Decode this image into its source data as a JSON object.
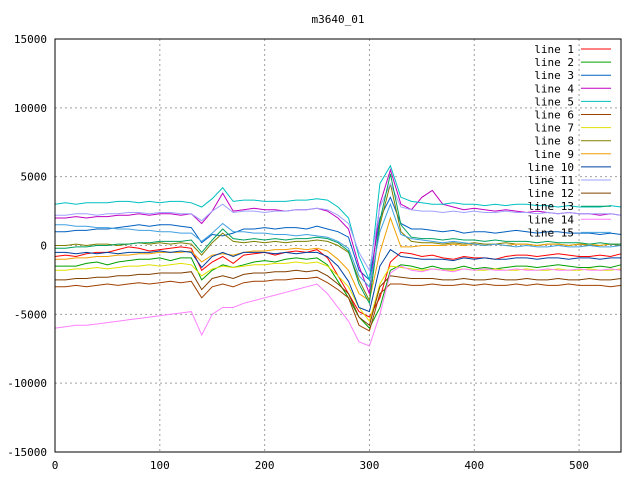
{
  "chart_data": {
    "type": "line",
    "title": "m3640_01",
    "xlabel": "",
    "ylabel": "",
    "xlim": [
      0,
      540
    ],
    "ylim": [
      -15000,
      15000
    ],
    "x_ticks": [
      0,
      100,
      200,
      300,
      400,
      500
    ],
    "y_ticks": [
      -15000,
      -10000,
      -5000,
      0,
      5000,
      10000,
      15000
    ],
    "grid": true,
    "legend_position": "top-right",
    "series": [
      {
        "name": "line 1",
        "color": "#ff0000",
        "values": [
          -800,
          -700,
          -800,
          -600,
          -500,
          -500,
          -300,
          -100,
          -200,
          -400,
          -300,
          -200,
          -100,
          -200,
          -1800,
          -1200,
          -800,
          -1300,
          -700,
          -600,
          -500,
          -700,
          -500,
          -400,
          -500,
          -300,
          -900,
          -2200,
          -3500,
          -4800,
          -5200,
          -3800,
          -1200,
          -500,
          -600,
          -800,
          -700,
          -900,
          -1000,
          -800,
          -900,
          -900,
          -1000,
          -800,
          -700,
          -700,
          -800,
          -700,
          -600,
          -700,
          -800,
          -800,
          -700,
          -800,
          -600
        ]
      },
      {
        "name": "line 2",
        "color": "#00a000",
        "values": [
          -1500,
          -1500,
          -1500,
          -1300,
          -1200,
          -1400,
          -1200,
          -1100,
          -1000,
          -1000,
          -900,
          -1100,
          -900,
          -900,
          -2500,
          -1800,
          -1400,
          -1600,
          -1400,
          -1200,
          -1100,
          -1200,
          -1000,
          -900,
          -1000,
          -900,
          -1400,
          -2600,
          -3800,
          -5200,
          -6000,
          -4500,
          -1800,
          -1400,
          -1500,
          -1700,
          -1500,
          -1700,
          -1700,
          -1500,
          -1700,
          -1600,
          -1700,
          -1600,
          -1500,
          -1500,
          -1600,
          -1500,
          -1400,
          -1500,
          -1600,
          -1600,
          -1500,
          -1600,
          -1400
        ]
      },
      {
        "name": "line 3",
        "color": "#0060c0",
        "values": [
          1000,
          1000,
          1100,
          1100,
          1200,
          1200,
          1300,
          1400,
          1500,
          1400,
          1500,
          1500,
          1400,
          1300,
          200,
          800,
          700,
          900,
          1200,
          1200,
          1300,
          1200,
          1300,
          1300,
          1200,
          1400,
          1200,
          1000,
          600,
          -1800,
          -2500,
          2000,
          3500,
          1600,
          1200,
          1200,
          1100,
          1000,
          1100,
          900,
          1000,
          1000,
          900,
          1000,
          1100,
          1000,
          900,
          1000,
          1000,
          900,
          900,
          900,
          800,
          900,
          800
        ]
      },
      {
        "name": "line 4",
        "color": "#c000c0",
        "values": [
          2000,
          2000,
          2100,
          2000,
          2100,
          2100,
          2200,
          2200,
          2300,
          2200,
          2300,
          2300,
          2200,
          2300,
          1600,
          2500,
          3800,
          2500,
          2600,
          2700,
          2600,
          2600,
          2500,
          2600,
          2600,
          2700,
          2500,
          2000,
          1200,
          -1500,
          -3500,
          3000,
          5500,
          3000,
          2600,
          3500,
          4000,
          3000,
          2800,
          2600,
          2700,
          2600,
          2500,
          2600,
          2500,
          2400,
          2500,
          2400,
          2300,
          2400,
          2300,
          2300,
          2200,
          2300,
          2200
        ]
      },
      {
        "name": "line 5",
        "color": "#00c0c0",
        "values": [
          3000,
          3100,
          3000,
          3100,
          3100,
          3100,
          3200,
          3200,
          3100,
          3200,
          3100,
          3200,
          3200,
          3100,
          2800,
          3400,
          4200,
          3200,
          3300,
          3300,
          3200,
          3200,
          3200,
          3300,
          3300,
          3400,
          3300,
          2800,
          2000,
          -800,
          -2500,
          4500,
          5800,
          3500,
          3200,
          3100,
          3000,
          3000,
          3100,
          3000,
          3000,
          2900,
          3000,
          2900,
          3000,
          3000,
          2900,
          2900,
          2800,
          2900,
          2800,
          2800,
          2800,
          2900,
          2800
        ]
      },
      {
        "name": "line 6",
        "color": "#a04000",
        "values": [
          -3000,
          -3000,
          -2900,
          -3000,
          -2900,
          -2800,
          -2900,
          -2800,
          -2700,
          -2800,
          -2700,
          -2600,
          -2700,
          -2600,
          -3800,
          -3000,
          -2800,
          -3000,
          -2700,
          -2600,
          -2600,
          -2500,
          -2500,
          -2400,
          -2400,
          -2300,
          -2700,
          -3200,
          -3800,
          -5800,
          -6200,
          -3500,
          -2800,
          -2800,
          -2900,
          -2900,
          -2800,
          -2900,
          -2900,
          -2800,
          -2900,
          -2800,
          -2900,
          -2900,
          -2800,
          -2900,
          -2800,
          -2900,
          -2900,
          -2800,
          -2900,
          -2900,
          -2900,
          -3000,
          -2900
        ]
      },
      {
        "name": "line 7",
        "color": "#e0e000",
        "values": [
          -1800,
          -1800,
          -1700,
          -1700,
          -1600,
          -1700,
          -1600,
          -1500,
          -1500,
          -1400,
          -1500,
          -1400,
          -1300,
          -1400,
          -2200,
          -1700,
          -1500,
          -1600,
          -1500,
          -1400,
          -1400,
          -1300,
          -1300,
          -1200,
          -1300,
          -1200,
          -1500,
          -2200,
          -3000,
          -4500,
          -5500,
          -2800,
          -1500,
          -1600,
          -1700,
          -1800,
          -1700,
          -1800,
          -1800,
          -1700,
          -1800,
          -1800,
          -1700,
          -1800,
          -1800,
          -1700,
          -1800,
          -1800,
          -1700,
          -1800,
          -1800,
          -1700,
          -1800,
          -1800,
          -1700
        ]
      },
      {
        "name": "line 8",
        "color": "#808000",
        "values": [
          0,
          0,
          100,
          0,
          100,
          100,
          0,
          100,
          200,
          100,
          200,
          100,
          200,
          100,
          -700,
          200,
          900,
          300,
          200,
          300,
          200,
          300,
          200,
          300,
          300,
          400,
          300,
          0,
          -500,
          -2500,
          -4000,
          1500,
          4500,
          1000,
          300,
          200,
          200,
          100,
          200,
          100,
          200,
          100,
          100,
          200,
          100,
          100,
          0,
          100,
          100,
          0,
          100,
          0,
          0,
          100,
          0
        ]
      },
      {
        "name": "line 9",
        "color": "#f0a000",
        "values": [
          -1000,
          -1000,
          -900,
          -900,
          -800,
          -800,
          -700,
          -700,
          -600,
          -600,
          -500,
          -500,
          -500,
          -400,
          -1200,
          -700,
          -600,
          -700,
          -500,
          -400,
          -400,
          -300,
          -300,
          -200,
          -300,
          -200,
          -400,
          -1000,
          -1800,
          -3500,
          -4000,
          -500,
          2000,
          -100,
          -100,
          0,
          0,
          0,
          100,
          0,
          100,
          0,
          100,
          0,
          100,
          100,
          0,
          100,
          100,
          0,
          100,
          100,
          0,
          100,
          100
        ]
      },
      {
        "name": "line 10",
        "color": "#0040a0",
        "values": [
          -500,
          -500,
          -600,
          -500,
          -600,
          -500,
          -600,
          -500,
          -500,
          -500,
          -400,
          -500,
          -400,
          -500,
          -1600,
          -800,
          -500,
          -800,
          -500,
          -500,
          -500,
          -600,
          -500,
          -600,
          -500,
          -500,
          -800,
          -1500,
          -2600,
          -4500,
          -4800,
          -1500,
          -300,
          -800,
          -900,
          -1000,
          -1000,
          -1000,
          -1100,
          -900,
          -1000,
          -900,
          -1000,
          -1000,
          -900,
          -900,
          -1000,
          -900,
          -900,
          -1000,
          -900,
          -900,
          -1000,
          -900,
          -900
        ]
      },
      {
        "name": "line 11",
        "color": "#a0a0ff",
        "values": [
          2200,
          2200,
          2300,
          2300,
          2200,
          2300,
          2300,
          2400,
          2400,
          2300,
          2400,
          2400,
          2300,
          2300,
          1800,
          2500,
          3000,
          2400,
          2500,
          2500,
          2400,
          2500,
          2500,
          2600,
          2600,
          2700,
          2600,
          2200,
          1600,
          -500,
          -1800,
          2800,
          4500,
          2800,
          2600,
          2500,
          2500,
          2400,
          2500,
          2400,
          2500,
          2400,
          2400,
          2500,
          2400,
          2400,
          2300,
          2400,
          2300,
          2400,
          2300,
          2300,
          2300,
          2300,
          2200
        ]
      },
      {
        "name": "line 12",
        "color": "#804000",
        "values": [
          -2500,
          -2500,
          -2400,
          -2400,
          -2300,
          -2300,
          -2200,
          -2200,
          -2100,
          -2100,
          -2000,
          -2000,
          -2000,
          -1900,
          -3200,
          -2400,
          -2200,
          -2400,
          -2100,
          -2000,
          -2000,
          -1900,
          -1900,
          -1800,
          -1900,
          -1800,
          -2200,
          -2800,
          -3500,
          -5200,
          -5800,
          -3000,
          -2200,
          -2300,
          -2400,
          -2400,
          -2400,
          -2500,
          -2500,
          -2400,
          -2500,
          -2500,
          -2400,
          -2500,
          -2500,
          -2400,
          -2500,
          -2500,
          -2400,
          -2500,
          -2500,
          -2400,
          -2500,
          -2500,
          -2400
        ]
      },
      {
        "name": "line 13",
        "color": "#00a060",
        "values": [
          -200,
          -200,
          -100,
          -100,
          0,
          0,
          100,
          100,
          200,
          200,
          300,
          300,
          300,
          400,
          -500,
          400,
          1200,
          500,
          400,
          500,
          400,
          500,
          400,
          500,
          500,
          600,
          500,
          200,
          -400,
          -2800,
          -4200,
          1800,
          5200,
          1500,
          600,
          500,
          500,
          400,
          500,
          400,
          400,
          300,
          400,
          300,
          300,
          300,
          200,
          300,
          200,
          200,
          200,
          100,
          200,
          100,
          100
        ]
      },
      {
        "name": "line 14",
        "color": "#ff80ff",
        "values": [
          -6000,
          -5900,
          -5800,
          -5800,
          -5700,
          -5600,
          -5500,
          -5400,
          -5300,
          -5200,
          -5100,
          -5000,
          -4900,
          -4800,
          -6500,
          -5000,
          -4500,
          -4500,
          -4200,
          -4000,
          -3800,
          -3600,
          -3400,
          -3200,
          -3000,
          -2800,
          -3500,
          -4500,
          -5500,
          -7000,
          -7300,
          -5000,
          -2000,
          -1500,
          -1800,
          -1900,
          -1700,
          -1800,
          -1900,
          -1700,
          -1800,
          -1700,
          -1800,
          -1800,
          -1700,
          -1800,
          -1800,
          -1700,
          -1800,
          -1800,
          -1700,
          -1800,
          -1800,
          -1700,
          -1800
        ]
      },
      {
        "name": "line 15",
        "color": "#40a0e0",
        "values": [
          1500,
          1500,
          1400,
          1400,
          1300,
          1300,
          1200,
          1200,
          1100,
          1100,
          1000,
          1000,
          900,
          900,
          300,
          900,
          1600,
          1000,
          1000,
          900,
          900,
          800,
          800,
          700,
          800,
          700,
          600,
          300,
          -200,
          -2200,
          -3000,
          1000,
          3000,
          800,
          500,
          400,
          300,
          200,
          300,
          200,
          100,
          0,
          100,
          0,
          -100,
          0,
          -100,
          -100,
          0,
          -100,
          -100,
          0,
          -100,
          -100,
          0
        ]
      }
    ],
    "x_step": 10
  }
}
